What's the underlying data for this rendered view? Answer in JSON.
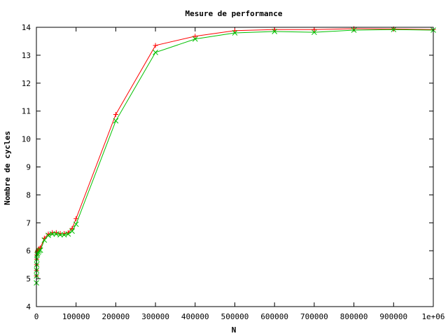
{
  "chart_data": {
    "type": "line",
    "title": "Mesure de performance",
    "xlabel": "N",
    "ylabel": "Nombre de cycles",
    "xlim": [
      0,
      1000000
    ],
    "ylim": [
      4,
      14
    ],
    "x_ticks": [
      0,
      100000,
      200000,
      300000,
      400000,
      500000,
      600000,
      700000,
      800000,
      900000,
      1000000
    ],
    "x_tick_labels": [
      "0",
      "100000",
      "200000",
      "300000",
      "400000",
      "500000",
      "600000",
      "700000",
      "800000",
      "900000",
      "1e+06"
    ],
    "y_ticks": [
      4,
      5,
      6,
      7,
      8,
      9,
      10,
      11,
      12,
      13,
      14
    ],
    "y_tick_labels": [
      "4",
      "5",
      "6",
      "7",
      "8",
      "9",
      "10",
      "11",
      "12",
      "13",
      "14"
    ],
    "grid": false,
    "legend": "none",
    "series": [
      {
        "color": "#ff0000",
        "marker": "plus",
        "points": [
          [
            100,
            5.1
          ],
          [
            300,
            5.3
          ],
          [
            500,
            5.5
          ],
          [
            800,
            5.7
          ],
          [
            1000,
            5.85
          ],
          [
            2000,
            5.95
          ],
          [
            3000,
            6.0
          ],
          [
            5000,
            6.05
          ],
          [
            7000,
            6.08
          ],
          [
            10000,
            6.1
          ],
          [
            20000,
            6.45
          ],
          [
            30000,
            6.6
          ],
          [
            40000,
            6.65
          ],
          [
            50000,
            6.65
          ],
          [
            60000,
            6.62
          ],
          [
            70000,
            6.62
          ],
          [
            80000,
            6.65
          ],
          [
            90000,
            6.8
          ],
          [
            100000,
            7.15
          ],
          [
            200000,
            10.88
          ],
          [
            300000,
            13.35
          ],
          [
            400000,
            13.68
          ],
          [
            500000,
            13.88
          ],
          [
            600000,
            13.92
          ],
          [
            700000,
            13.92
          ],
          [
            800000,
            13.95
          ],
          [
            900000,
            13.94
          ],
          [
            1000000,
            13.92
          ]
        ]
      },
      {
        "color": "#00c000",
        "marker": "cross",
        "points": [
          [
            100,
            4.85
          ],
          [
            300,
            5.1
          ],
          [
            500,
            5.3
          ],
          [
            800,
            5.5
          ],
          [
            1000,
            5.7
          ],
          [
            2000,
            5.85
          ],
          [
            3000,
            5.9
          ],
          [
            5000,
            5.95
          ],
          [
            7000,
            6.0
          ],
          [
            10000,
            6.02
          ],
          [
            20000,
            6.38
          ],
          [
            30000,
            6.55
          ],
          [
            40000,
            6.6
          ],
          [
            50000,
            6.6
          ],
          [
            60000,
            6.57
          ],
          [
            70000,
            6.57
          ],
          [
            80000,
            6.6
          ],
          [
            90000,
            6.7
          ],
          [
            100000,
            6.95
          ],
          [
            200000,
            10.65
          ],
          [
            300000,
            13.1
          ],
          [
            400000,
            13.58
          ],
          [
            500000,
            13.8
          ],
          [
            600000,
            13.85
          ],
          [
            700000,
            13.82
          ],
          [
            800000,
            13.9
          ],
          [
            900000,
            13.92
          ],
          [
            1000000,
            13.9
          ]
        ]
      }
    ]
  }
}
